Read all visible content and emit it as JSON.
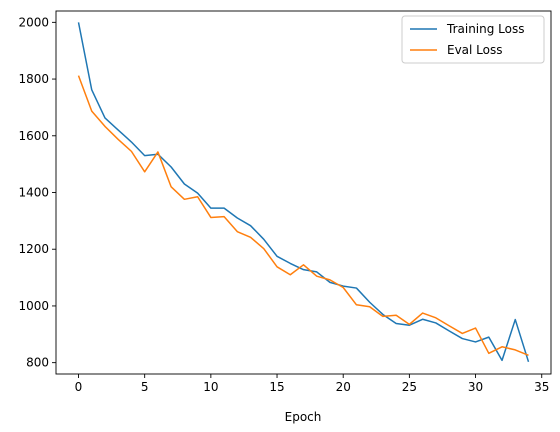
{
  "chart_data": {
    "type": "line",
    "title": "",
    "xlabel": "Epoch",
    "ylabel": "",
    "xlim": [
      -1.7,
      35.7
    ],
    "ylim": [
      760,
      2040
    ],
    "xticks": [
      0,
      5,
      10,
      15,
      20,
      25,
      30,
      35
    ],
    "yticks": [
      800,
      1000,
      1200,
      1400,
      1600,
      1800,
      2000
    ],
    "grid": false,
    "legend": {
      "position": "top-right"
    },
    "x": [
      0,
      1,
      2,
      3,
      4,
      5,
      6,
      7,
      8,
      9,
      10,
      11,
      12,
      13,
      14,
      15,
      16,
      17,
      18,
      19,
      20,
      21,
      22,
      23,
      24,
      25,
      26,
      27,
      28,
      29,
      30,
      31,
      32,
      33,
      34
    ],
    "series": [
      {
        "name": "Training Loss",
        "color": "#1f77b4",
        "values": [
          2000,
          1762,
          1663,
          1620,
          1578,
          1530,
          1535,
          1490,
          1430,
          1398,
          1345,
          1345,
          1310,
          1283,
          1235,
          1175,
          1150,
          1128,
          1120,
          1083,
          1070,
          1063,
          1013,
          970,
          938,
          932,
          953,
          940,
          912,
          885,
          873,
          890,
          808,
          952,
          803
        ]
      },
      {
        "name": "Eval Loss",
        "color": "#ff7f0e",
        "values": [
          1812,
          1687,
          1633,
          1587,
          1545,
          1473,
          1543,
          1420,
          1376,
          1385,
          1312,
          1315,
          1262,
          1242,
          1202,
          1138,
          1110,
          1145,
          1105,
          1092,
          1065,
          1004,
          997,
          963,
          967,
          935,
          975,
          958,
          930,
          903,
          922,
          833,
          856,
          845,
          826
        ]
      }
    ]
  }
}
